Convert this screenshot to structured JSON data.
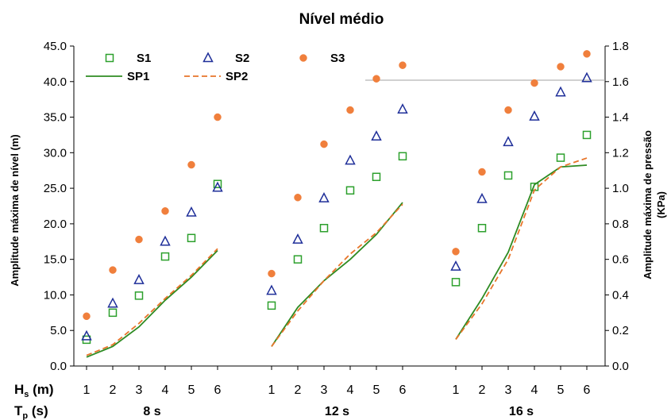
{
  "chart_data": {
    "type": "scatter",
    "title": "Nível médio",
    "ylabel_left": "Amplitude máxima de nível (m)",
    "ylabel_right_line1": "Amplitude máxima de pressão",
    "ylabel_right_line2": "(KPa)",
    "ylim_left": [
      0,
      45
    ],
    "ylim_right": [
      0,
      1.8
    ],
    "yticks_left": [
      "0.0",
      "5.0",
      "10.0",
      "15.0",
      "20.0",
      "25.0",
      "30.0",
      "35.0",
      "40.0",
      "45.0"
    ],
    "yticks_right": [
      "0.0",
      "0.2",
      "0.4",
      "0.6",
      "0.8",
      "1.0",
      "1.2",
      "1.4",
      "1.6",
      "1.8"
    ],
    "x_row_label_main": "H",
    "x_row_label_sub": "s",
    "x_row_label_unit": " (m)",
    "tp_label_main": "T",
    "tp_label_sub": "p",
    "tp_label_unit": " (s)",
    "hs_values": [
      "1",
      "2",
      "3",
      "4",
      "5",
      "6"
    ],
    "groups": [
      "8 s",
      "12 s",
      "16 s"
    ],
    "grid": false,
    "legend_position": "top-left",
    "series": [
      {
        "name": "S1",
        "marker": "square",
        "color": "#2ca02c",
        "axis": "left",
        "values": [
          [
            3.7,
            7.5,
            9.9,
            15.4,
            18.0,
            25.6
          ],
          [
            8.5,
            15.0,
            19.4,
            24.7,
            26.6,
            29.5
          ],
          [
            11.8,
            19.4,
            26.8,
            25.2,
            29.3,
            32.5
          ]
        ]
      },
      {
        "name": "S2",
        "marker": "triangle",
        "color": "#1f2f99",
        "axis": "left",
        "values": [
          [
            4.2,
            8.8,
            12.1,
            17.5,
            21.6,
            25.1
          ],
          [
            10.6,
            17.8,
            23.6,
            28.9,
            32.3,
            36.1
          ],
          [
            14.0,
            23.5,
            31.5,
            35.1,
            38.5,
            40.5
          ]
        ]
      },
      {
        "name": "S3",
        "marker": "circle",
        "color": "#f07f3c",
        "axis": "left",
        "values": [
          [
            7.0,
            13.5,
            17.8,
            21.8,
            28.3,
            35.0
          ],
          [
            13.0,
            23.7,
            31.2,
            36.0,
            40.4,
            42.3
          ],
          [
            16.1,
            27.3,
            36.0,
            39.8,
            42.1,
            43.9
          ]
        ]
      },
      {
        "name": "SP1",
        "marker": "line",
        "dash": "solid",
        "color": "#2e8b22",
        "axis": "right",
        "values": [
          [
            0.05,
            0.11,
            0.22,
            0.37,
            0.5,
            0.65
          ],
          [
            0.11,
            0.33,
            0.48,
            0.6,
            0.74,
            0.92
          ],
          [
            0.15,
            0.38,
            0.64,
            1.02,
            1.12,
            1.13
          ]
        ]
      },
      {
        "name": "SP2",
        "marker": "line",
        "dash": "dashed",
        "color": "#e8752a",
        "axis": "right",
        "values": [
          [
            0.06,
            0.12,
            0.24,
            0.38,
            0.51,
            0.66
          ],
          [
            0.11,
            0.31,
            0.48,
            0.63,
            0.75,
            0.91
          ],
          [
            0.15,
            0.35,
            0.6,
            0.99,
            1.12,
            1.17
          ]
        ]
      }
    ]
  }
}
